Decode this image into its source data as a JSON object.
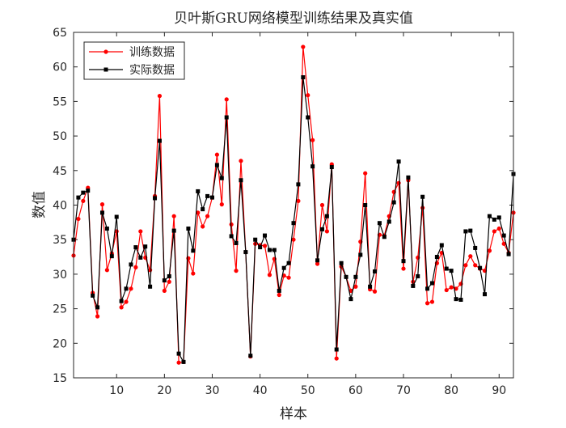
{
  "chart_data": {
    "type": "line",
    "title": "贝叶斯GRU网络模型训练结果及真实值",
    "xlabel": "样本",
    "ylabel": "数值",
    "xlim": [
      1,
      93
    ],
    "ylim": [
      15,
      65
    ],
    "x_ticks": [
      10,
      20,
      30,
      40,
      50,
      60,
      70,
      80,
      90
    ],
    "y_ticks": [
      15,
      20,
      25,
      30,
      35,
      40,
      45,
      50,
      55,
      60,
      65
    ],
    "grid": false,
    "legend_position": "top-left",
    "colors": {
      "train": "#ff0000",
      "actual": "#000000",
      "axis": "#262626"
    },
    "series": [
      {
        "name": "训练数据",
        "color": "#ff0000",
        "marker": "circle",
        "values": [
          32.7,
          38.0,
          40.6,
          42.5,
          27.3,
          23.9,
          40.1,
          30.6,
          33.0,
          36.2,
          25.2,
          26.0,
          27.9,
          31.0,
          36.2,
          32.4,
          30.6,
          41.3,
          55.8,
          27.6,
          28.9,
          38.4,
          17.2,
          17.3,
          32.3,
          30.1,
          38.9,
          36.9,
          38.4,
          41.1,
          47.3,
          40.1,
          55.3,
          37.2,
          30.5,
          46.4,
          33.2,
          18.1,
          34.4,
          34.2,
          34.1,
          29.9,
          32.2,
          27.0,
          29.8,
          29.5,
          35.0,
          40.6,
          62.9,
          55.9,
          49.4,
          31.5,
          40.0,
          36.2,
          45.9,
          17.8,
          31.1,
          29.6,
          27.6,
          28.2,
          34.7,
          44.6,
          27.8,
          27.5,
          35.7,
          35.6,
          38.4,
          41.9,
          43.2,
          30.8,
          43.6,
          28.9,
          32.4,
          39.6,
          25.8,
          26.0,
          31.6,
          33.1,
          27.7,
          28.1,
          27.9,
          28.6,
          31.3,
          32.6,
          31.3,
          30.8,
          30.5,
          33.4,
          36.2,
          36.6,
          34.4,
          33.1,
          38.9
        ]
      },
      {
        "name": "实际数据",
        "color": "#000000",
        "marker": "square",
        "values": [
          35.0,
          41.1,
          41.8,
          42.1,
          26.9,
          25.2,
          38.9,
          36.6,
          32.6,
          38.3,
          26.1,
          27.9,
          31.4,
          33.9,
          32.4,
          34.0,
          28.2,
          41.0,
          49.3,
          29.1,
          29.7,
          36.3,
          18.5,
          17.3,
          36.6,
          33.4,
          42.0,
          39.4,
          41.3,
          41.1,
          45.8,
          43.9,
          52.7,
          35.5,
          34.5,
          43.6,
          33.2,
          18.2,
          35.0,
          33.9,
          35.6,
          33.5,
          33.5,
          27.6,
          30.9,
          31.6,
          37.4,
          43.0,
          58.5,
          52.7,
          45.6,
          32.0,
          36.5,
          38.4,
          45.5,
          19.1,
          31.6,
          29.6,
          26.4,
          29.6,
          32.8,
          40.0,
          28.2,
          30.4,
          37.4,
          35.4,
          37.6,
          40.4,
          46.3,
          31.9,
          44.0,
          28.3,
          29.7,
          41.2,
          27.9,
          28.7,
          32.5,
          34.2,
          30.8,
          30.5,
          26.4,
          26.3,
          36.2,
          36.3,
          33.8,
          30.9,
          27.1,
          38.4,
          37.9,
          38.2,
          35.6,
          32.9,
          44.5
        ]
      }
    ]
  }
}
